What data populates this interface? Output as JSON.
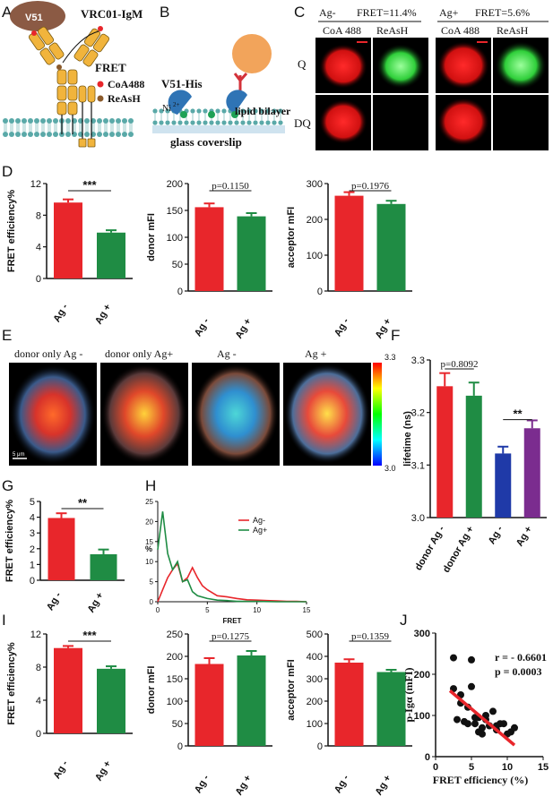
{
  "panel_labels": {
    "A": "A",
    "B": "B",
    "C": "C",
    "D": "D",
    "E": "E",
    "F": "F",
    "G": "G",
    "H": "H",
    "I": "I",
    "J": "J"
  },
  "panel_a": {
    "v51": "V51",
    "vrc": "VRC01-IgM",
    "fret": "FRET",
    "coa": "CoA488",
    "reash": "ReAsH",
    "colors": {
      "coa": "#e8262b",
      "reash": "#8b5a2b",
      "heavy": "#f1b43c",
      "v51": "#8b5a44",
      "membrane": "#5aa9a8"
    }
  },
  "panel_b": {
    "v51his": "V51-His",
    "ni": "Ni",
    "ni_sup": "2+",
    "lipid": "lipid bilayer",
    "glass": "glass coverslip",
    "colors": {
      "ball": "#f2a45b",
      "arm": "#2f74b5",
      "ni": "#1ea155"
    }
  },
  "panel_c": {
    "ag_minus": "Ag-",
    "fret_minus": "FRET=11.4%",
    "ag_plus": "Ag+",
    "fret_plus": "FRET=5.6%",
    "cols": [
      "CoA 488",
      "ReAsH",
      "CoA 488",
      "ReAsH"
    ],
    "rows": [
      "Q",
      "DQ"
    ]
  },
  "colors": {
    "red": "#e8262b",
    "green": "#1f8c44",
    "blue": "#1f3aa8",
    "purple": "#7b2c8f"
  },
  "chart_data": [
    {
      "id": "D1",
      "type": "bar",
      "categories": [
        "Ag -",
        "Ag +"
      ],
      "values": [
        9.6,
        5.8
      ],
      "errors": [
        0.4,
        0.3
      ],
      "ylabel": "FRET efficiency%",
      "ylim": [
        0,
        12
      ],
      "yticks": [
        "0",
        "4",
        "8",
        "12"
      ],
      "annotation": "***"
    },
    {
      "id": "D2",
      "type": "bar",
      "categories": [
        "Ag -",
        "Ag +"
      ],
      "values": [
        156,
        139
      ],
      "errors": [
        7,
        6
      ],
      "ylabel": "donor mFI",
      "ylim": [
        0,
        200
      ],
      "yticks": [
        "0",
        "50",
        "100",
        "150",
        "200"
      ],
      "annotation": "p=0.1150"
    },
    {
      "id": "D3",
      "type": "bar",
      "categories": [
        "Ag -",
        "Ag +"
      ],
      "values": [
        266,
        243
      ],
      "errors": [
        10,
        9
      ],
      "ylabel": "acceptor mFI",
      "ylim": [
        0,
        300
      ],
      "yticks": [
        "0",
        "100",
        "200",
        "300"
      ],
      "annotation": "p=0.1976"
    },
    {
      "id": "F",
      "type": "bar",
      "categories": [
        "donor Ag -",
        "donor Ag +",
        "Ag -",
        "Ag +"
      ],
      "values": [
        3.25,
        3.232,
        3.122,
        3.17
      ],
      "errors": [
        0.025,
        0.025,
        0.013,
        0.015
      ],
      "ylabel": "lifetime (ns)",
      "ylim": [
        3.0,
        3.3
      ],
      "yticks": [
        "3.0",
        "3.1",
        "3.2",
        "3.3"
      ],
      "annotations": [
        "p=0.8092",
        "**"
      ]
    },
    {
      "id": "G",
      "type": "bar",
      "categories": [
        "Ag -",
        "Ag +"
      ],
      "values": [
        3.95,
        1.65
      ],
      "errors": [
        0.3,
        0.3
      ],
      "ylabel": "FRET efficiency%",
      "ylim": [
        0,
        5
      ],
      "yticks": [
        "0",
        "1",
        "2",
        "3",
        "4",
        "5"
      ],
      "annotation": "**"
    },
    {
      "id": "H",
      "type": "line",
      "xlabel": "FRET",
      "ylabel": "%",
      "xlim": [
        0,
        15
      ],
      "ylim": [
        0,
        25
      ],
      "xticks": [
        "0",
        "5",
        "10",
        "15"
      ],
      "yticks": [
        "0",
        "5",
        "10",
        "15",
        "20",
        "25"
      ],
      "series": [
        {
          "name": "Ag-",
          "x": [
            0,
            0.5,
            1,
            1.5,
            2,
            2.5,
            3,
            3.5,
            4,
            4.5,
            5,
            6,
            7,
            8,
            9,
            10,
            11,
            12,
            13,
            14,
            15
          ],
          "y": [
            0,
            3,
            6,
            8,
            9.5,
            5,
            6,
            8.5,
            6,
            4,
            3,
            1.5,
            1.2,
            0.8,
            0.5,
            0.4,
            0.3,
            0.2,
            0.1,
            0.1,
            0
          ]
        },
        {
          "name": "Ag+",
          "x": [
            0,
            0.5,
            1,
            1.5,
            2,
            2.5,
            3,
            3.5,
            4,
            5,
            6,
            7,
            8,
            10,
            12,
            15
          ],
          "y": [
            13,
            22.5,
            12,
            8,
            10,
            5,
            5.5,
            2.5,
            1.5,
            0.8,
            0.4,
            0.3,
            0.1,
            0.1,
            0,
            0
          ]
        }
      ]
    },
    {
      "id": "I1",
      "type": "bar",
      "categories": [
        "Ag -",
        "Ag +"
      ],
      "values": [
        10.3,
        7.8
      ],
      "errors": [
        0.25,
        0.3
      ],
      "ylabel": "FRET efficiency%",
      "ylim": [
        0,
        12
      ],
      "yticks": [
        "0",
        "4",
        "8",
        "12"
      ],
      "annotation": "***"
    },
    {
      "id": "I2",
      "type": "bar",
      "categories": [
        "Ag -",
        "Ag +"
      ],
      "values": [
        183,
        202
      ],
      "errors": [
        13,
        10
      ],
      "ylabel": "donor mFI",
      "ylim": [
        0,
        250
      ],
      "yticks": [
        "0",
        "50",
        "100",
        "150",
        "200",
        "250"
      ],
      "annotation": "p=0.1275"
    },
    {
      "id": "I3",
      "type": "bar",
      "categories": [
        "Ag -",
        "Ag +"
      ],
      "values": [
        372,
        330
      ],
      "errors": [
        15,
        10
      ],
      "ylabel": "acceptor mFI",
      "ylim": [
        0,
        500
      ],
      "yticks": [
        "0",
        "100",
        "200",
        "300",
        "400",
        "500"
      ],
      "annotation": "p=0.1359"
    },
    {
      "id": "J",
      "type": "scatter",
      "xlabel": "FRET efficiency (%)",
      "ylabel": "p-Igα  (mFI)",
      "xlim": [
        0,
        15
      ],
      "ylim": [
        0,
        300
      ],
      "xticks": [
        "0",
        "5",
        "10",
        "15"
      ],
      "yticks": [
        "0",
        "100",
        "200",
        "300"
      ],
      "x": [
        2.5,
        3.5,
        5.0,
        2.5,
        3.0,
        4.0,
        4.5,
        5.5,
        6.0,
        6.5,
        7.0,
        8.0,
        3.5,
        4.5,
        5.5,
        6.5,
        7.5,
        8.5,
        9.0,
        10.0,
        10.5,
        11.0,
        6.0,
        7.0,
        8.5,
        9.5,
        5.0
      ],
      "y": [
        165,
        150,
        170,
        240,
        90,
        85,
        80,
        95,
        60,
        55,
        100,
        110,
        130,
        120,
        80,
        70,
        75,
        65,
        80,
        55,
        60,
        70,
        95,
        90,
        75,
        80,
        235
      ],
      "fit": {
        "x": [
          2,
          11
        ],
        "y": [
          160,
          28
        ]
      },
      "annotations": [
        "r = - 0.6601",
        "p = 0.0003"
      ]
    }
  ],
  "panel_e": {
    "labels": [
      "donor only Ag -",
      "donor only Ag+",
      "Ag -",
      "Ag +"
    ],
    "scale_bar": "5 μm",
    "cbar_max": "3.3",
    "cbar_min": "3.0"
  }
}
